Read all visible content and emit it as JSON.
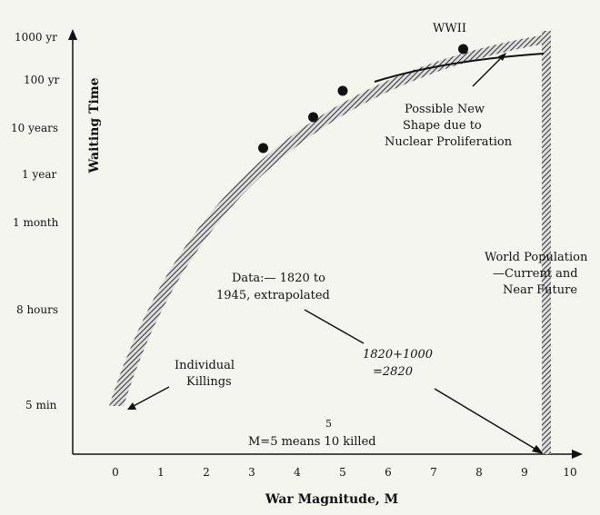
{
  "chart_data": {
    "type": "line",
    "xlabel": "War Magnitude, M",
    "ylabel": "Waiting Time",
    "xlim": [
      -1,
      10
    ],
    "x_ticks": [
      "0",
      "1",
      "2",
      "3",
      "4",
      "5",
      "6",
      "7",
      "8",
      "9",
      "10"
    ],
    "y_ticks": [
      "5 min",
      "8 hours",
      "1 month",
      "1 year",
      "10 years",
      "100 yr",
      "1000 yr"
    ],
    "data_points": [
      {
        "x": 3.25,
        "y_label": "~10 years"
      },
      {
        "x": 4.35,
        "y_label": "~10 years"
      },
      {
        "x": 5.0,
        "y_label": "~50 years"
      },
      {
        "x": 7.65,
        "y_label": "~500 years"
      }
    ],
    "annotations": {
      "wwii": "WWII",
      "new_shape": [
        "Possible New",
        "Shape due to",
        "Nuclear Proliferation"
      ],
      "world_pop": [
        "World Population",
        "—Current and",
        "Near Future"
      ],
      "data_note": [
        "Data:— 1820 to",
        "1945, extrapolated"
      ],
      "extrap": [
        "1820+1000",
        "=2820"
      ],
      "individual": [
        "Individual",
        "Killings"
      ],
      "m5_text": "M=5 means 10  killed",
      "m5_exp": "5"
    },
    "grid": false,
    "legend": "none"
  }
}
